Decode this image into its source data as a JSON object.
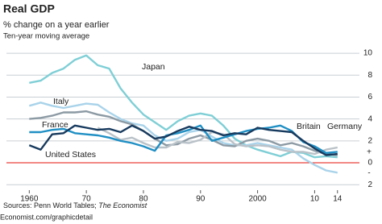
{
  "chart_data": {
    "type": "line",
    "title": "Real GDP",
    "subtitle": "% change on a year earlier",
    "note": "Ten-year moving average",
    "source_prefix": "Sources: Penn World Tables; ",
    "source_italic": "The Economist",
    "footer": "Economist.com/graphicdetail",
    "x": [
      1960,
      1962,
      1964,
      1966,
      1968,
      1970,
      1972,
      1974,
      1976,
      1978,
      1980,
      1982,
      1984,
      1986,
      1988,
      1990,
      1992,
      1994,
      1996,
      1998,
      2000,
      2002,
      2004,
      2006,
      2008,
      2010,
      2012,
      2014
    ],
    "xlim": [
      1956,
      2017
    ],
    "xticks": [
      1960,
      {
        "value": 1970,
        "label": "70"
      },
      {
        "value": 1980,
        "label": "80"
      },
      {
        "value": 1990,
        "label": "90"
      },
      2000,
      {
        "value": 2010,
        "label": "10"
      },
      {
        "value": 2014,
        "label": "14"
      }
    ],
    "ylim": [
      -2.5,
      10.3
    ],
    "yticks": [
      {
        "value": -2,
        "label": "2"
      },
      0,
      2,
      4,
      6,
      8,
      10
    ],
    "y_signs": {
      "positive": "+",
      "negative": "-"
    },
    "zero_line_color": "#e3120b",
    "grid": true,
    "series": [
      {
        "name": "Japan",
        "color": "#7fcfd6",
        "values": [
          7.3,
          7.5,
          8.2,
          8.6,
          9.4,
          9.8,
          8.9,
          8.6,
          6.8,
          5.5,
          4.4,
          3.7,
          3.0,
          3.8,
          4.3,
          4.5,
          4.3,
          3.4,
          2.2,
          1.6,
          1.2,
          0.9,
          0.6,
          1.0,
          0.9,
          0.5,
          0.6,
          0.5
        ]
      },
      {
        "name": "Italy",
        "color": "#a9d3ea",
        "values": [
          5.2,
          5.5,
          5.2,
          5.0,
          5.2,
          5.4,
          5.3,
          4.6,
          4.0,
          3.6,
          3.4,
          2.5,
          2.0,
          2.2,
          2.8,
          3.0,
          2.4,
          1.8,
          1.6,
          1.6,
          1.8,
          1.6,
          1.4,
          1.2,
          0.4,
          -0.2,
          -0.7,
          -0.9
        ]
      },
      {
        "name": "France",
        "color": "#8c9aa4",
        "values": [
          4.0,
          4.1,
          4.3,
          4.6,
          4.6,
          4.7,
          4.4,
          4.2,
          3.8,
          3.5,
          2.9,
          2.2,
          1.6,
          1.7,
          2.2,
          2.5,
          2.1,
          1.6,
          1.5,
          2.0,
          2.2,
          2.0,
          1.6,
          1.8,
          1.5,
          1.1,
          0.8,
          0.7
        ]
      },
      {
        "name": "Germany",
        "color": "#b9c2c8",
        "values": [
          null,
          null,
          null,
          null,
          null,
          null,
          3.2,
          2.7,
          2.1,
          2.3,
          1.8,
          1.4,
          1.4,
          1.9,
          1.8,
          2.1,
          2.8,
          2.6,
          1.7,
          1.5,
          1.6,
          1.5,
          1.2,
          1.0,
          1.0,
          0.8,
          1.2,
          1.4
        ]
      },
      {
        "name": "Britain",
        "color": "#1f8fc4",
        "values": [
          2.8,
          2.8,
          3.0,
          3.1,
          2.7,
          2.6,
          2.5,
          2.3,
          2.0,
          1.8,
          1.5,
          1.1,
          2.5,
          2.7,
          3.0,
          3.4,
          2.0,
          2.3,
          2.6,
          2.9,
          3.1,
          3.2,
          3.4,
          2.9,
          1.9,
          1.5,
          0.9,
          1.0
        ]
      },
      {
        "name": "United States",
        "color": "#173a5e",
        "values": [
          1.6,
          1.2,
          2.6,
          2.7,
          3.4,
          3.2,
          3.0,
          3.1,
          2.8,
          3.4,
          2.9,
          2.2,
          2.4,
          2.9,
          3.3,
          3.0,
          2.9,
          2.5,
          2.7,
          2.6,
          3.2,
          3.0,
          2.9,
          2.8,
          2.0,
          1.3,
          0.7,
          0.8
        ]
      }
    ]
  }
}
